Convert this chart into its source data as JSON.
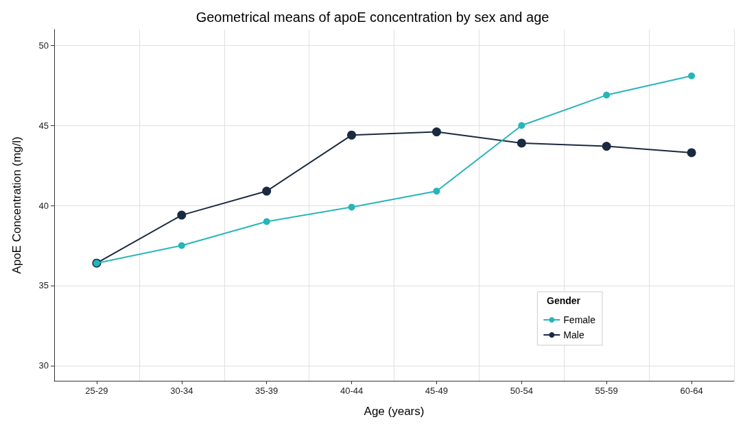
{
  "chart_data": {
    "type": "line",
    "title": "Geometrical means of apoE concentration by sex and age",
    "xlabel": "Age (years)",
    "ylabel": "ApoE Concentration (mg/l)",
    "legend_title": "Gender",
    "categories": [
      "25-29",
      "30-34",
      "35-39",
      "40-44",
      "45-49",
      "50-54",
      "55-59",
      "60-64"
    ],
    "series": [
      {
        "name": "Female",
        "color": "#26b5b8",
        "values": [
          36.4,
          37.5,
          39.0,
          39.9,
          40.9,
          45.0,
          46.9,
          48.1
        ]
      },
      {
        "name": "Male",
        "color": "#1a2a40",
        "values": [
          36.4,
          39.4,
          40.9,
          44.4,
          44.6,
          43.9,
          43.7,
          43.3
        ]
      }
    ],
    "ylim": [
      29.05,
      51.0
    ],
    "yticks": [
      30,
      35,
      40,
      45,
      50
    ],
    "grid": true,
    "legend": "bottom right",
    "marker": "circle",
    "line_style": "solid"
  }
}
